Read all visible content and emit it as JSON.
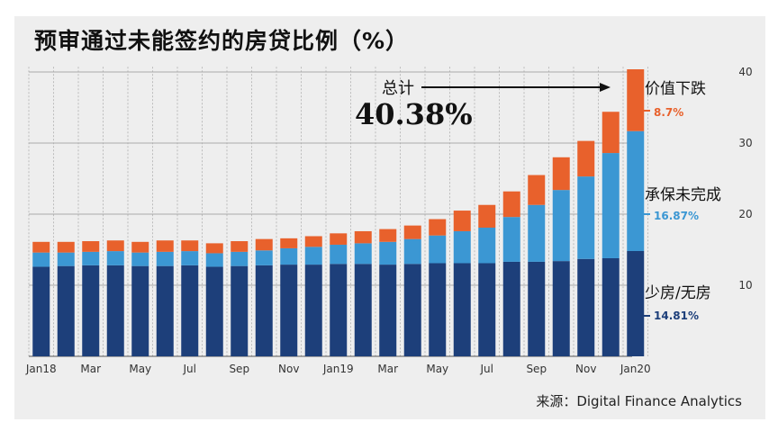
{
  "chart_data": {
    "type": "bar",
    "stacked": true,
    "title": "预审通过未能签约的房贷比例（%）",
    "categories": [
      "Jan18",
      "Feb18",
      "Mar18",
      "Apr18",
      "May18",
      "Jun18",
      "Jul18",
      "Aug18",
      "Sep18",
      "Oct18",
      "Nov18",
      "Dec18",
      "Jan19",
      "Feb19",
      "Mar19",
      "Apr19",
      "May19",
      "Jun19",
      "Jul19",
      "Aug19",
      "Sep19",
      "Oct19",
      "Nov19",
      "Dec19",
      "Jan20"
    ],
    "tick_labels": [
      "Jan18",
      "",
      "Mar",
      "",
      "May",
      "",
      "Jul",
      "",
      "Sep",
      "",
      "Nov",
      "",
      "Jan19",
      "",
      "Mar",
      "",
      "May",
      "",
      "Jul",
      "",
      "Sep",
      "",
      "Nov",
      "",
      "Jan20"
    ],
    "series": [
      {
        "name": "少房/无房",
        "color": "#1d3f7a",
        "values": [
          12.6,
          12.7,
          12.8,
          12.8,
          12.7,
          12.7,
          12.8,
          12.6,
          12.7,
          12.8,
          12.9,
          12.9,
          13.0,
          13.0,
          12.9,
          13.0,
          13.1,
          13.1,
          13.1,
          13.3,
          13.3,
          13.4,
          13.7,
          13.8,
          14.81
        ]
      },
      {
        "name": "承保未完成",
        "color": "#3b97d3",
        "values": [
          2.0,
          1.9,
          1.9,
          2.0,
          1.9,
          2.0,
          2.0,
          1.9,
          2.0,
          2.1,
          2.3,
          2.5,
          2.7,
          2.9,
          3.2,
          3.5,
          3.9,
          4.5,
          5.0,
          6.3,
          8.0,
          10.0,
          11.6,
          14.8,
          16.87
        ]
      },
      {
        "name": "价值下跌",
        "color": "#e8612c",
        "values": [
          1.5,
          1.5,
          1.5,
          1.5,
          1.5,
          1.6,
          1.5,
          1.4,
          1.5,
          1.6,
          1.4,
          1.5,
          1.6,
          1.7,
          1.8,
          1.9,
          2.3,
          2.9,
          3.2,
          3.6,
          4.2,
          4.6,
          5.0,
          5.8,
          8.7
        ]
      }
    ],
    "ylim": [
      0,
      42
    ],
    "yticks": [
      10,
      20,
      30,
      40
    ],
    "grid": true,
    "axis_side": "right",
    "annotation": {
      "label": "总计",
      "value": "40.38%"
    },
    "end_labels": [
      {
        "name": "价值下跌",
        "value": "8.7%",
        "color": "#e8612c"
      },
      {
        "name": "承保未完成",
        "value": "16.87%",
        "color": "#3b97d3"
      },
      {
        "name": "少房/无房",
        "value": "14.81%",
        "color": "#1d3f7a"
      }
    ]
  },
  "source": "来源：Digital Finance Analytics"
}
